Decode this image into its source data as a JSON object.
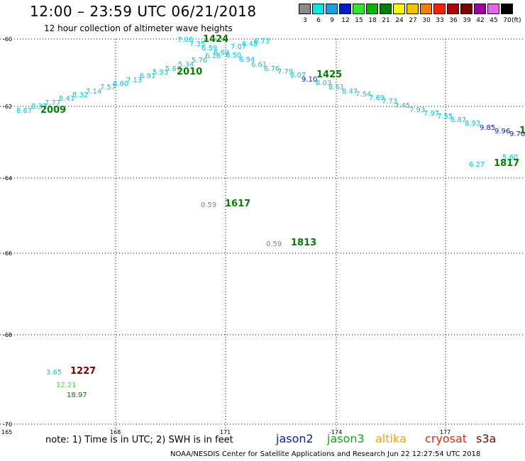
{
  "title": "12:00 – 23:59 UTC 06/21/2018",
  "subtitle": "12 hour collection of altimeter wave heights",
  "scale": {
    "values": [
      "3",
      "6",
      "9",
      "12",
      "15",
      "18",
      "21",
      "24",
      "27",
      "30",
      "33",
      "36",
      "39",
      "42",
      "45",
      "70"
    ],
    "colors": [
      "#8a8a8a",
      "#00e8e8",
      "#1c9fe0",
      "#0018d0",
      "#2ee62e",
      "#00b400",
      "#008000",
      "#f8f800",
      "#f8c000",
      "#f88000",
      "#f82000",
      "#b40000",
      "#800000",
      "#a000a0",
      "#e068e0",
      "#000000"
    ],
    "unit": "(ft)"
  },
  "axes": {
    "lat_labels": [
      "-60",
      "-62",
      "-64",
      "-66",
      "-68",
      "-70"
    ],
    "lon_labels": [
      "165",
      "168",
      "171",
      "-174",
      "177"
    ]
  },
  "observations": [
    {
      "t": "8.67",
      "c": "#00c8d8"
    },
    {
      "t": "8.37",
      "c": "#00c8d8"
    },
    {
      "t": "7.77",
      "c": "#00c8d8"
    },
    {
      "t": "8.41",
      "c": "#00c8d8"
    },
    {
      "t": "8.32",
      "c": "#00c8d8"
    },
    {
      "t": "7.14",
      "c": "#00c8d8"
    },
    {
      "t": "7.57",
      "c": "#00c8d8"
    },
    {
      "t": "6.60",
      "c": "#00c8d8"
    },
    {
      "t": "7.13",
      "c": "#00c8d8"
    },
    {
      "t": "6.91",
      "c": "#00c8d8"
    },
    {
      "t": "5.93",
      "c": "#00c8d8"
    },
    {
      "t": "5.67",
      "c": "#00c8d8"
    },
    {
      "t": "5.34",
      "c": "#00c8d8"
    },
    {
      "t": "5.76",
      "c": "#00c8d8"
    },
    {
      "t": "6.16",
      "c": "#00c8d8"
    },
    {
      "t": "7.06",
      "c": "#00c8d8"
    },
    {
      "t": "7.35",
      "c": "#00c8d8"
    },
    {
      "t": "6.59",
      "c": "#00c8d8"
    },
    {
      "t": "6.69",
      "c": "#00c8d8"
    },
    {
      "t": "6.50",
      "c": "#00c8d8"
    },
    {
      "t": "7.07",
      "c": "#00c8d8"
    },
    {
      "t": "6.48",
      "c": "#00c8d8"
    },
    {
      "t": "6.73",
      "c": "#00c8d8"
    },
    {
      "t": "6.94",
      "c": "#00c8d8"
    },
    {
      "t": "6.61",
      "c": "#00c8d8"
    },
    {
      "t": "6.76",
      "c": "#00c8d8"
    },
    {
      "t": "7.79",
      "c": "#00c8d8"
    },
    {
      "t": "8.07",
      "c": "#00c8d8"
    },
    {
      "t": "9.10",
      "c": "#0018d0"
    },
    {
      "t": "8.03",
      "c": "#00c8d8"
    },
    {
      "t": "8.61",
      "c": "#00c8d8"
    },
    {
      "t": "8.47",
      "c": "#00c8d8"
    },
    {
      "t": "7.54",
      "c": "#00c8d8"
    },
    {
      "t": "7.69",
      "c": "#00c8d8"
    },
    {
      "t": "7.73",
      "c": "#00c8d8"
    },
    {
      "t": "7.45",
      "c": "#00c8d8"
    },
    {
      "t": "7.93",
      "c": "#00c8d8"
    },
    {
      "t": "7.97",
      "c": "#00c8d8"
    },
    {
      "t": "7.55",
      "c": "#00c8d8"
    },
    {
      "t": "8.87",
      "c": "#00c8d8"
    },
    {
      "t": "8.93",
      "c": "#00c8d8"
    },
    {
      "t": "9.85",
      "c": "#0018d0"
    },
    {
      "t": "9.96",
      "c": "#0018d0"
    },
    {
      "t": "9.70",
      "c": "#0018d0"
    },
    {
      "t": "5.60",
      "c": "#00c8d8"
    },
    {
      "t": "6.27",
      "c": "#00c8d8"
    },
    {
      "t": "0.59",
      "c": "#808080"
    },
    {
      "t": "0.59",
      "c": "#808080"
    },
    {
      "t": "3.65",
      "c": "#00c8d8"
    },
    {
      "t": "12.21",
      "c": "#2ee62e"
    },
    {
      "t": "18.97",
      "c": "#008000"
    }
  ],
  "time_labels": [
    {
      "t": "1424",
      "c": "#008000"
    },
    {
      "t": "2010",
      "c": "#008000"
    },
    {
      "t": "2009",
      "c": "#008000"
    },
    {
      "t": "1425",
      "c": "#008000"
    },
    {
      "t": "1817",
      "c": "#008000"
    },
    {
      "t": "1617",
      "c": "#008000"
    },
    {
      "t": "1813",
      "c": "#008000"
    },
    {
      "t": "1227",
      "c": "#800000"
    },
    {
      "t": "1",
      "c": "#008000"
    }
  ],
  "note": "note:  1) Time is in UTC;  2) SWH is in feet",
  "satellites": [
    {
      "name": "jason2",
      "color": "#0018d0"
    },
    {
      "name": "jason3",
      "color": "#00b400"
    },
    {
      "name": "altika",
      "color": "#f8a000"
    },
    {
      "name": "cryosat",
      "color": "#f82000"
    },
    {
      "name": "s3a",
      "color": "#800000"
    }
  ],
  "footer": "NOAA/NESDIS Center for Satellite Applications and Research    Jun 22 12:27:54 UTC 2018"
}
